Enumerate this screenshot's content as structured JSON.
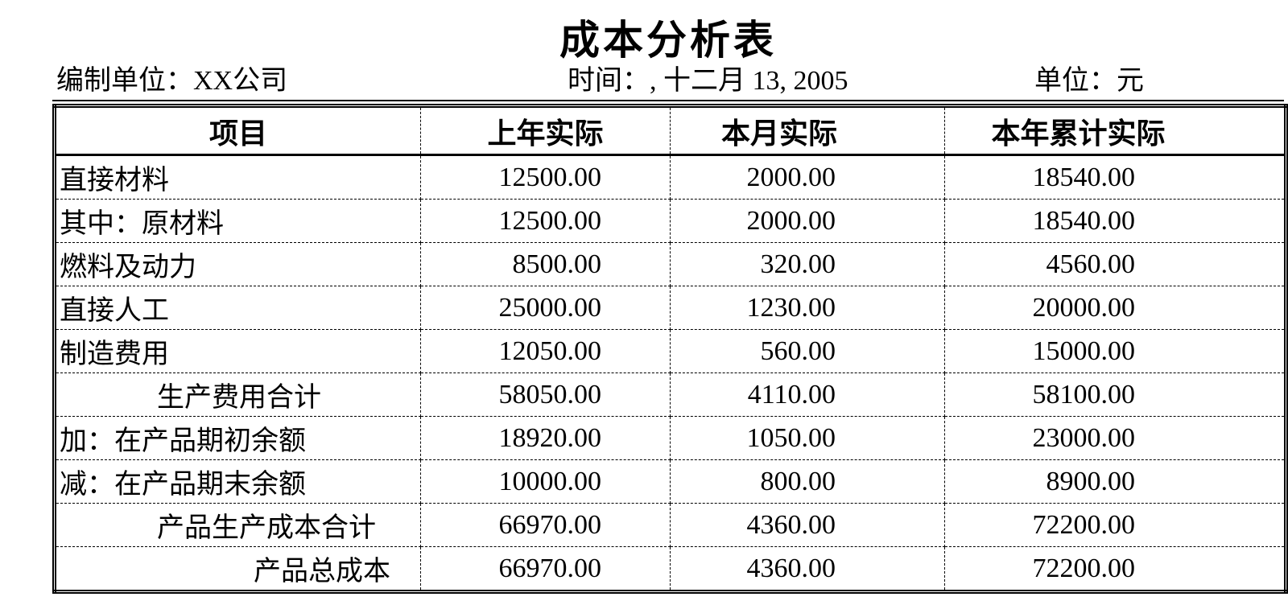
{
  "title": "成本分析表",
  "meta": {
    "prepared_by": "编制单位：XX公司",
    "time": "时间：, 十二月 13, 2005",
    "currency_unit": "单位：元"
  },
  "table": {
    "columns": [
      "项目",
      "上年实际",
      "本月实际",
      "本年累计实际"
    ],
    "rows": [
      {
        "item": "直接材料",
        "indent": 0,
        "prev_year": "12500.00",
        "this_month": "2000.00",
        "ytd": "18540.00"
      },
      {
        "item": "其中：原材料",
        "indent": 0,
        "prev_year": "12500.00",
        "this_month": "2000.00",
        "ytd": "18540.00"
      },
      {
        "item": "燃料及动力",
        "indent": 0,
        "prev_year": "8500.00",
        "this_month": "320.00",
        "ytd": "4560.00"
      },
      {
        "item": "直接人工",
        "indent": 0,
        "prev_year": "25000.00",
        "this_month": "1230.00",
        "ytd": "20000.00"
      },
      {
        "item": "制造费用",
        "indent": 0,
        "prev_year": "12050.00",
        "this_month": "560.00",
        "ytd": "15000.00"
      },
      {
        "item": "生产费用合计",
        "indent": 1,
        "prev_year": "58050.00",
        "this_month": "4110.00",
        "ytd": "58100.00"
      },
      {
        "item": "加：在产品期初余额",
        "indent": 0,
        "prev_year": "18920.00",
        "this_month": "1050.00",
        "ytd": "23000.00"
      },
      {
        "item": "减：在产品期末余额",
        "indent": 0,
        "prev_year": "10000.00",
        "this_month": "800.00",
        "ytd": "8900.00"
      },
      {
        "item": "产品生产成本合计",
        "indent": 1,
        "prev_year": "66970.00",
        "this_month": "4360.00",
        "ytd": "72200.00"
      },
      {
        "item": "产品总成本",
        "indent": 2,
        "prev_year": "66970.00",
        "this_month": "4360.00",
        "ytd": "72200.00"
      }
    ]
  },
  "colors": {
    "background": "#ffffff",
    "text": "#000000",
    "border": "#000000"
  }
}
